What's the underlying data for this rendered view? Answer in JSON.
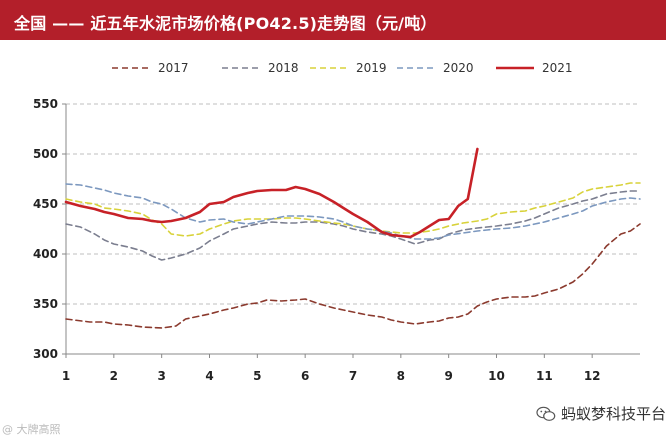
{
  "header": {
    "title": "全国 —— 近五年水泥市场价格(PO42.5)走势图（元/吨）"
  },
  "footer": {
    "source_mark": "@ 大牌高照"
  },
  "watermark": {
    "text": "蚂蚁梦科技平台",
    "icon": "wechat-icon"
  },
  "colors": {
    "header_bg": "#b31f2a",
    "2017": "#8b3a2e",
    "2018": "#7b7e8f",
    "2019": "#d8d23a",
    "2020": "#7c98bf",
    "2021": "#c72127",
    "grid": "#bfbfbf"
  },
  "chart_data": {
    "type": "line",
    "title": "近五年水泥市场价格(PO42.5)走势图（元/吨）",
    "xlabel": "",
    "ylabel": "",
    "xlim": [
      1,
      13
    ],
    "ylim": [
      300,
      550
    ],
    "x_ticks": [
      "1",
      "2",
      "3",
      "4",
      "5",
      "6",
      "7",
      "8",
      "9",
      "10",
      "11",
      "12"
    ],
    "y_ticks": [
      300,
      350,
      400,
      450,
      500,
      550
    ],
    "grid": "horizontal dashed",
    "legend_position": "top",
    "series": [
      {
        "name": "2017",
        "style": "dashed",
        "x": [
          1,
          1.5,
          1.8,
          2.0,
          2.3,
          2.6,
          3.0,
          3.3,
          3.5,
          3.8,
          4.0,
          4.3,
          4.5,
          4.8,
          5.0,
          5.2,
          5.5,
          5.8,
          6.0,
          6.3,
          6.6,
          6.8,
          7.0,
          7.3,
          7.6,
          7.8,
          8.0,
          8.3,
          8.6,
          8.8,
          9.0,
          9.2,
          9.4,
          9.6,
          9.8,
          10.0,
          10.3,
          10.6,
          10.8,
          11.0,
          11.3,
          11.6,
          11.8,
          12.0,
          12.3,
          12.6,
          12.8,
          13.0
        ],
        "values": [
          335,
          332,
          332,
          330,
          329,
          327,
          326,
          328,
          335,
          338,
          340,
          344,
          346,
          350,
          351,
          354,
          353,
          354,
          355,
          350,
          346,
          344,
          342,
          339,
          337,
          334,
          332,
          330,
          332,
          333,
          336,
          337,
          340,
          348,
          352,
          355,
          357,
          357,
          358,
          361,
          365,
          372,
          380,
          390,
          408,
          420,
          423,
          430
        ]
      },
      {
        "name": "2018",
        "style": "dashed",
        "x": [
          1,
          1.3,
          1.6,
          1.8,
          2.0,
          2.3,
          2.6,
          2.8,
          3.0,
          3.2,
          3.5,
          3.8,
          4.0,
          4.3,
          4.5,
          4.8,
          5.0,
          5.3,
          5.6,
          5.8,
          6.0,
          6.3,
          6.6,
          6.8,
          7.0,
          7.3,
          7.6,
          7.8,
          8.0,
          8.3,
          8.6,
          8.8,
          9.0,
          9.3,
          9.6,
          9.8,
          10.0,
          10.3,
          10.6,
          10.8,
          11.0,
          11.3,
          11.6,
          11.8,
          12.0,
          12.3,
          12.6,
          12.8,
          13.0
        ],
        "values": [
          430,
          427,
          420,
          414,
          410,
          407,
          403,
          398,
          394,
          396,
          400,
          406,
          413,
          420,
          425,
          428,
          430,
          432,
          431,
          431,
          432,
          432,
          430,
          428,
          425,
          422,
          420,
          418,
          415,
          410,
          414,
          415,
          420,
          424,
          426,
          427,
          428,
          430,
          433,
          436,
          440,
          446,
          450,
          453,
          455,
          460,
          462,
          463,
          463
        ]
      },
      {
        "name": "2019",
        "style": "dashed",
        "x": [
          1,
          1.3,
          1.6,
          1.8,
          2.0,
          2.3,
          2.6,
          2.8,
          3.0,
          3.2,
          3.5,
          3.8,
          4.0,
          4.3,
          4.5,
          4.8,
          5.0,
          5.3,
          5.6,
          5.8,
          6.0,
          6.3,
          6.6,
          6.8,
          7.0,
          7.3,
          7.6,
          7.8,
          8.0,
          8.3,
          8.6,
          8.8,
          9.0,
          9.3,
          9.6,
          9.8,
          10.0,
          10.3,
          10.6,
          10.8,
          11.0,
          11.3,
          11.6,
          11.8,
          12.0,
          12.3,
          12.6,
          12.8,
          13.0
        ],
        "values": [
          455,
          452,
          450,
          446,
          445,
          443,
          440,
          434,
          430,
          420,
          418,
          420,
          425,
          430,
          433,
          435,
          435,
          435,
          436,
          436,
          435,
          433,
          431,
          430,
          428,
          425,
          423,
          422,
          421,
          421,
          423,
          425,
          428,
          431,
          433,
          435,
          440,
          442,
          443,
          446,
          448,
          452,
          456,
          462,
          465,
          467,
          469,
          471,
          471
        ]
      },
      {
        "name": "2020",
        "style": "dashed",
        "x": [
          1,
          1.3,
          1.6,
          1.8,
          2.0,
          2.3,
          2.6,
          2.8,
          3.0,
          3.2,
          3.5,
          3.8,
          4.0,
          4.3,
          4.5,
          4.8,
          5.0,
          5.3,
          5.6,
          5.8,
          6.0,
          6.3,
          6.6,
          6.8,
          7.0,
          7.3,
          7.6,
          7.8,
          8.0,
          8.3,
          8.6,
          8.8,
          9.0,
          9.3,
          9.6,
          9.8,
          10.0,
          10.3,
          10.6,
          10.8,
          11.0,
          11.3,
          11.6,
          11.8,
          12.0,
          12.3,
          12.6,
          12.8,
          13.0
        ],
        "values": [
          470,
          469,
          466,
          464,
          461,
          458,
          456,
          452,
          450,
          445,
          436,
          432,
          434,
          435,
          432,
          430,
          432,
          435,
          438,
          438,
          438,
          437,
          435,
          432,
          428,
          425,
          423,
          421,
          418,
          415,
          415,
          416,
          419,
          421,
          423,
          424,
          425,
          426,
          428,
          430,
          432,
          436,
          440,
          443,
          448,
          452,
          455,
          456,
          455
        ]
      },
      {
        "name": "2021",
        "style": "solid",
        "x": [
          1,
          1.3,
          1.6,
          1.8,
          2.0,
          2.3,
          2.6,
          2.8,
          3.0,
          3.2,
          3.5,
          3.8,
          4.0,
          4.3,
          4.5,
          4.8,
          5.0,
          5.3,
          5.6,
          5.8,
          6.0,
          6.3,
          6.6,
          6.8,
          7.0,
          7.3,
          7.6,
          7.8,
          8.0,
          8.2,
          8.4,
          8.6,
          8.8,
          9.0,
          9.2,
          9.4,
          9.6
        ],
        "values": [
          452,
          448,
          445,
          442,
          440,
          436,
          435,
          433,
          432,
          433,
          436,
          442,
          450,
          452,
          457,
          461,
          463,
          464,
          464,
          467,
          465,
          460,
          452,
          446,
          440,
          432,
          422,
          419,
          418,
          417,
          422,
          428,
          434,
          435,
          448,
          455,
          505
        ]
      }
    ]
  }
}
